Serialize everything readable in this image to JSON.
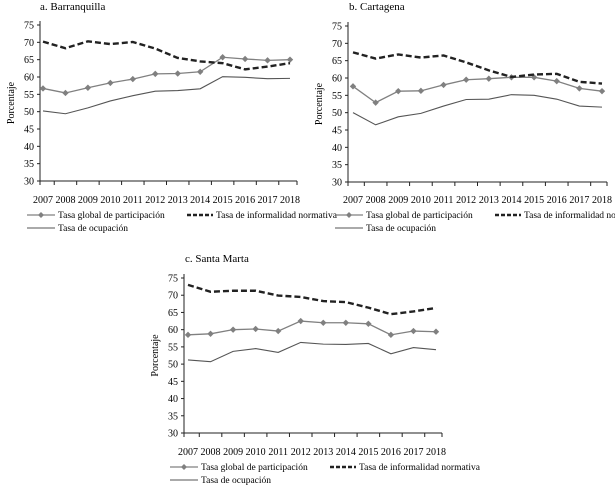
{
  "chart_data": [
    {
      "type": "line",
      "title": "a. Barranquilla",
      "ylabel": "Porcentaje",
      "ylim": [
        30,
        75
      ],
      "yticks": [
        30,
        35,
        40,
        45,
        50,
        55,
        60,
        65,
        70,
        75
      ],
      "categories": [
        "2007",
        "2008",
        "2009",
        "2010",
        "2011",
        "2012",
        "2013",
        "2014",
        "2015",
        "2016",
        "2017",
        "2018"
      ],
      "grid": false,
      "legend": "bottom",
      "series": [
        {
          "name": "Tasa global de participación",
          "style": "solid-markers",
          "color": "#808080",
          "values": [
            56.7,
            55.4,
            56.9,
            58.3,
            59.4,
            60.9,
            61.0,
            61.5,
            65.7,
            65.2,
            64.8,
            65.0
          ]
        },
        {
          "name": "Tasa de informalidad normativa",
          "style": "dashed",
          "color": "#222222",
          "values": [
            70.2,
            68.3,
            70.3,
            69.5,
            70.1,
            68.2,
            65.5,
            64.5,
            64.0,
            62.2,
            63.0,
            64.0
          ]
        },
        {
          "name": "Tasa de ocupación",
          "style": "solid",
          "color": "#555555",
          "values": [
            50.2,
            49.4,
            51.1,
            53.1,
            54.6,
            55.9,
            56.1,
            56.6,
            60.1,
            59.9,
            59.5,
            59.6
          ]
        }
      ]
    },
    {
      "type": "line",
      "title": "b. Cartagena",
      "ylabel": "Porcentaje",
      "ylim": [
        30,
        75
      ],
      "yticks": [
        30,
        35,
        40,
        45,
        50,
        55,
        60,
        65,
        70,
        75
      ],
      "categories": [
        "2007",
        "2008",
        "2009",
        "2010",
        "2011",
        "2012",
        "2013",
        "2014",
        "2015",
        "2016",
        "2017",
        "2018"
      ],
      "grid": false,
      "legend": "bottom",
      "series": [
        {
          "name": "Tasa global de participación",
          "style": "solid-markers",
          "color": "#808080",
          "values": [
            57.6,
            52.9,
            56.2,
            56.3,
            58.0,
            59.5,
            59.8,
            60.2,
            60.2,
            59.1,
            57.0,
            56.2
          ]
        },
        {
          "name": "Tasa de informalidad normativa",
          "style": "dashed",
          "color": "#222222",
          "values": [
            67.4,
            65.6,
            66.8,
            65.9,
            66.5,
            64.5,
            62.2,
            60.3,
            61.0,
            61.2,
            58.9,
            58.4
          ]
        },
        {
          "name": "Tasa de ocupación",
          "style": "solid",
          "color": "#555555",
          "values": [
            50.0,
            46.5,
            48.8,
            49.8,
            51.9,
            53.8,
            53.9,
            55.2,
            55.0,
            53.9,
            51.9,
            51.6
          ]
        }
      ]
    },
    {
      "type": "line",
      "title": "c. Santa Marta",
      "ylabel": "Porcentaje",
      "ylim": [
        30,
        75
      ],
      "yticks": [
        30,
        35,
        40,
        45,
        50,
        55,
        60,
        65,
        70,
        75
      ],
      "categories": [
        "2007",
        "2008",
        "2009",
        "2010",
        "2011",
        "2012",
        "2013",
        "2014",
        "2015",
        "2016",
        "2017",
        "2018"
      ],
      "grid": false,
      "legend": "bottom",
      "series": [
        {
          "name": "Tasa global de participación",
          "style": "solid-markers",
          "color": "#808080",
          "values": [
            58.5,
            58.8,
            60.0,
            60.2,
            59.6,
            62.5,
            62.0,
            62.0,
            61.7,
            58.5,
            59.6,
            59.4
          ]
        },
        {
          "name": "Tasa de informalidad normativa",
          "style": "dashed",
          "color": "#222222",
          "values": [
            73.0,
            71.0,
            71.3,
            71.3,
            69.9,
            69.5,
            68.3,
            68.0,
            66.4,
            64.5,
            65.3,
            66.3
          ]
        },
        {
          "name": "Tasa de ocupación",
          "style": "solid",
          "color": "#555555",
          "values": [
            51.2,
            50.7,
            53.7,
            54.5,
            53.4,
            56.3,
            55.8,
            55.7,
            56.0,
            53.0,
            54.8,
            54.2
          ]
        }
      ]
    }
  ]
}
